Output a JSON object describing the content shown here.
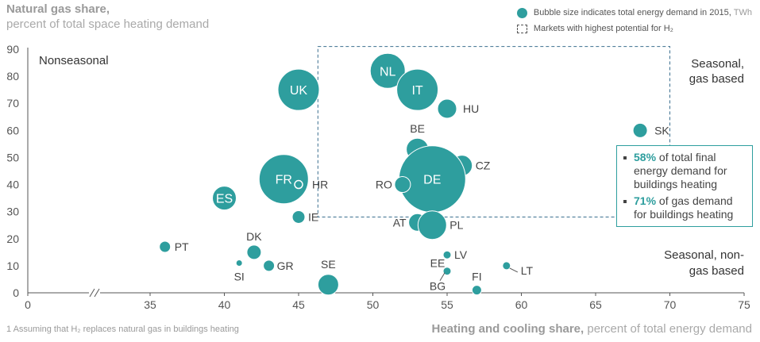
{
  "header": {
    "title": "Natural gas share,",
    "subtitle": "percent of total space heating demand"
  },
  "legend": {
    "bubble_label": "Bubble size indicates total energy demand in 2015,",
    "bubble_unit": "TWh",
    "box_label": "Markets with highest potential for H₂"
  },
  "callout": {
    "item1_pct": "58%",
    "item1_text": "of total final energy demand for buildings heating",
    "item2_pct": "71%",
    "item2_text": "of gas demand for buildings heating"
  },
  "footnote": "1 Assuming that H₂ replaces natural gas in buildings heating",
  "x_axis_title": {
    "bold": "Heating and cooling share,",
    "rest": "percent of total energy demand"
  },
  "colors": {
    "bubble": "#2e9e9e",
    "axis": "#555555",
    "dashed_box": "#3b6f8f"
  },
  "chart_data": {
    "type": "scatter",
    "subtype": "bubble",
    "xlabel": "Heating and cooling share, percent of total energy demand",
    "ylabel": "Natural gas share, percent of total space heating demand",
    "x_ticks": [
      "0",
      "35",
      "40",
      "45",
      "50",
      "55",
      "60",
      "65",
      "70",
      "75"
    ],
    "y_ticks": [
      "0",
      "10",
      "20",
      "30",
      "40",
      "50",
      "60",
      "70",
      "80",
      "90"
    ],
    "xlim": [
      35,
      75
    ],
    "x_axis_break": true,
    "ylim": [
      0,
      90
    ],
    "grid": false,
    "region_labels": {
      "nonseasonal": "Nonseasonal",
      "seasonal_gas_line1": "Seasonal,",
      "seasonal_gas_line2": "gas based",
      "seasonal_nongas_line1": "Seasonal, non-",
      "seasonal_nongas_line2": "gas based"
    },
    "highlight_box": {
      "x": [
        46.3,
        70
      ],
      "y": [
        28,
        91
      ]
    },
    "points": [
      {
        "label": "NL",
        "x": 51,
        "y": 82,
        "size": 22,
        "label_inside": true
      },
      {
        "label": "UK",
        "x": 45,
        "y": 75,
        "size": 26,
        "label_inside": true
      },
      {
        "label": "IT",
        "x": 53,
        "y": 75,
        "size": 26,
        "label_inside": true
      },
      {
        "label": "HU",
        "x": 55,
        "y": 68,
        "size": 12,
        "label_inside": false
      },
      {
        "label": "SK",
        "x": 68,
        "y": 60,
        "size": 9,
        "label_inside": false
      },
      {
        "label": "BE",
        "x": 53,
        "y": 53,
        "size": 14,
        "label_inside": false
      },
      {
        "label": "CZ",
        "x": 56,
        "y": 47,
        "size": 13,
        "label_inside": false
      },
      {
        "label": "DE",
        "x": 54,
        "y": 42,
        "size": 42,
        "label_inside": true
      },
      {
        "label": "FR",
        "x": 44,
        "y": 42,
        "size": 31,
        "label_inside": true
      },
      {
        "label": "HR",
        "x": 45,
        "y": 40,
        "size": 5,
        "label_inside": false
      },
      {
        "label": "RO",
        "x": 52,
        "y": 40,
        "size": 10,
        "label_inside": false
      },
      {
        "label": "ES",
        "x": 40,
        "y": 35,
        "size": 15,
        "label_inside": true
      },
      {
        "label": "IE",
        "x": 45,
        "y": 28,
        "size": 8,
        "label_inside": false
      },
      {
        "label": "AT",
        "x": 53,
        "y": 26,
        "size": 11,
        "label_inside": false
      },
      {
        "label": "PL",
        "x": 54,
        "y": 25,
        "size": 18,
        "label_inside": false
      },
      {
        "label": "PT",
        "x": 36,
        "y": 17,
        "size": 7,
        "label_inside": false
      },
      {
        "label": "DK",
        "x": 42,
        "y": 15,
        "size": 9,
        "label_inside": false
      },
      {
        "label": "LV",
        "x": 55,
        "y": 14,
        "size": 5,
        "label_inside": false
      },
      {
        "label": "SI",
        "x": 41,
        "y": 11,
        "size": 4,
        "label_inside": false
      },
      {
        "label": "GR",
        "x": 43,
        "y": 10,
        "size": 7,
        "label_inside": false
      },
      {
        "label": "LT",
        "x": 59,
        "y": 10,
        "size": 5,
        "label_inside": false
      },
      {
        "label": "EE",
        "x": 55,
        "y": 8,
        "size": 4,
        "label_inside": false
      },
      {
        "label": "BG",
        "x": 55,
        "y": 8,
        "size": 5,
        "label_inside": false
      },
      {
        "label": "SE",
        "x": 47,
        "y": 3,
        "size": 13,
        "label_inside": false
      },
      {
        "label": "FI",
        "x": 57,
        "y": 1,
        "size": 6,
        "label_inside": false
      }
    ]
  }
}
